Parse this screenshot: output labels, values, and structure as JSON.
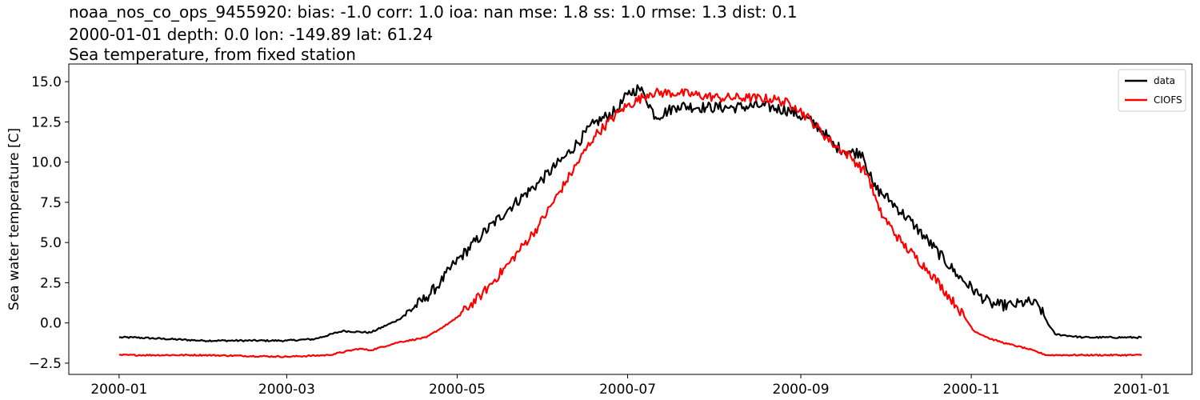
{
  "chart_data": {
    "type": "line",
    "title_lines": [
      "noaa_nos_co_ops_9455920: bias: -1.0  corr: 1.0  ioa: nan  mse: 1.8  ss: 1.0  rmse: 1.3  dist: 0.1",
      "2000-01-01 depth: 0.0 lon: -149.89 lat: 61.24",
      "Sea temperature, from fixed station"
    ],
    "xlabel": "",
    "ylabel": "Sea water temperature [C]",
    "x_tick_labels": [
      "2000-01",
      "2000-03",
      "2000-05",
      "2000-07",
      "2000-09",
      "2000-11",
      "2001-01"
    ],
    "x_tick_days": [
      0,
      60,
      121,
      182,
      244,
      305,
      366
    ],
    "xlim_days": [
      -18,
      384
    ],
    "y_tick_labels": [
      "−2.5",
      "0.0",
      "2.5",
      "5.0",
      "7.5",
      "10.0",
      "12.5",
      "15.0"
    ],
    "y_tick_values": [
      -2.5,
      0,
      2.5,
      5,
      7.5,
      10,
      12.5,
      15
    ],
    "ylim": [
      -3.2,
      16.1
    ],
    "legend_position": "top-right",
    "series": [
      {
        "name": "data",
        "color": "#000000",
        "x_day": [
          0,
          5,
          30,
          60,
          70,
          80,
          90,
          100,
          110,
          115,
          120,
          130,
          140,
          150,
          160,
          170,
          178,
          182,
          186,
          188,
          192,
          200,
          210,
          220,
          230,
          240,
          248,
          252,
          256,
          262,
          266,
          270,
          276,
          285,
          300,
          308,
          312,
          315,
          320,
          325,
          329,
          333,
          335,
          345,
          366
        ],
        "values": [
          -0.9,
          -0.9,
          -1.1,
          -1.1,
          -1.0,
          -0.5,
          -0.6,
          0.2,
          1.6,
          2.5,
          3.7,
          5.5,
          7.2,
          8.7,
          10.4,
          12.4,
          13.2,
          14.2,
          14.6,
          14.2,
          12.8,
          13.5,
          13.4,
          13.4,
          13.5,
          13.2,
          12.5,
          11.9,
          11.0,
          10.6,
          10.6,
          8.5,
          7.6,
          6.0,
          3.0,
          1.7,
          1.2,
          1.1,
          1.1,
          1.3,
          1.1,
          -0.2,
          -0.7,
          -0.9,
          -0.9
        ]
      },
      {
        "name": "CIOFS",
        "color": "#ff0000",
        "x_day": [
          0,
          30,
          60,
          75,
          86,
          90,
          100,
          110,
          120,
          130,
          140,
          150,
          160,
          170,
          180,
          190,
          200,
          215,
          225,
          235,
          242,
          248,
          255,
          262,
          268,
          272,
          280,
          290,
          300,
          306,
          312,
          318,
          325,
          332,
          335,
          345,
          366
        ],
        "values": [
          -2.0,
          -2.0,
          -2.1,
          -2.0,
          -1.6,
          -1.7,
          -1.2,
          -0.9,
          0.2,
          1.8,
          3.8,
          6.0,
          8.8,
          11.6,
          13.3,
          14.3,
          14.3,
          14.0,
          14.0,
          13.9,
          13.5,
          12.5,
          11.2,
          10.3,
          9.2,
          7.0,
          5.0,
          3.2,
          1.0,
          -0.5,
          -1.0,
          -1.3,
          -1.6,
          -2.0,
          -2.0,
          -2.0,
          -2.0
        ]
      }
    ]
  }
}
